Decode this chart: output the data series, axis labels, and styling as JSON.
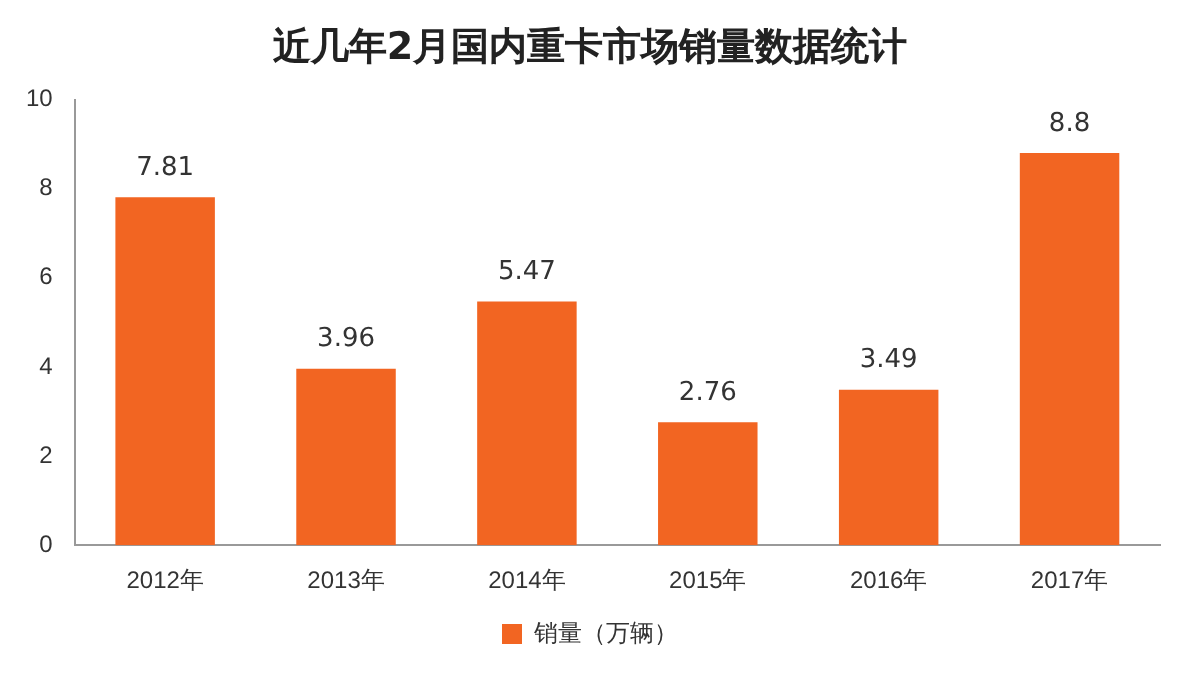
{
  "chart_data": {
    "type": "bar",
    "title": "近几年2月国内重卡市场销量数据统计",
    "categories": [
      "2012年",
      "2013年",
      "2014年",
      "2015年",
      "2016年",
      "2017年"
    ],
    "series": [
      {
        "name": "销量（万辆）",
        "color": "#f26522",
        "values": [
          7.81,
          3.96,
          5.47,
          2.76,
          3.49,
          8.8
        ]
      }
    ],
    "ylim": [
      0,
      10
    ],
    "yticks": [
      0,
      2,
      4,
      6,
      8,
      10
    ],
    "grid": false,
    "legend": "bottom",
    "data_labels": true
  }
}
